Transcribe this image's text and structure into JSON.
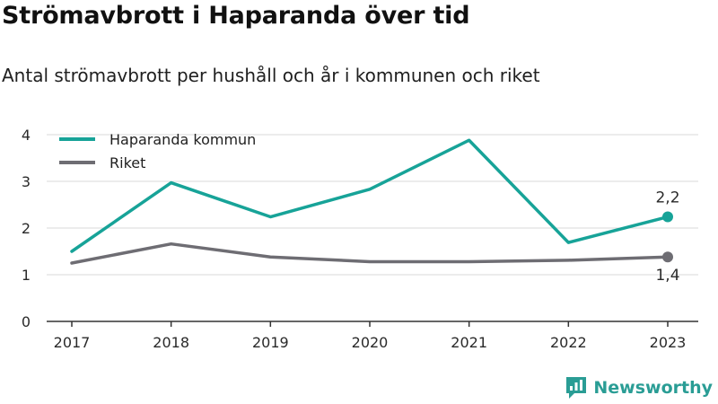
{
  "header": {
    "title": "Strömavbrott i Haparanda över tid",
    "subtitle": "Antal strömavbrott per hushåll och år i kommunen och riket"
  },
  "brand": {
    "name": "Newsworthy",
    "icon": "newsworthy-logo-icon",
    "color": "#2a9d95"
  },
  "colors": {
    "haparanda": "#17a398",
    "riket": "#6e6d73",
    "grid": "#d9d9d9",
    "axis": "#333333"
  },
  "chart_data": {
    "type": "line",
    "title": "Strömavbrott i Haparanda över tid",
    "subtitle": "Antal strömavbrott per hushåll och år i kommunen och riket",
    "xlabel": "",
    "ylabel": "",
    "x": [
      "2017",
      "2018",
      "2019",
      "2020",
      "2021",
      "2022",
      "2023"
    ],
    "ylim": [
      0,
      4
    ],
    "yticks": [
      "0",
      "1",
      "2",
      "3",
      "4"
    ],
    "grid": true,
    "legend": "top-left",
    "series": [
      {
        "name": "Haparanda kommun",
        "color": "#17a398",
        "values": [
          1.5,
          2.97,
          2.24,
          2.83,
          3.88,
          1.69,
          2.24
        ],
        "end_label": "2,2"
      },
      {
        "name": "Riket",
        "color": "#6e6d73",
        "values": [
          1.25,
          1.66,
          1.38,
          1.28,
          1.28,
          1.31,
          1.38
        ],
        "end_label": "1,4"
      }
    ]
  }
}
